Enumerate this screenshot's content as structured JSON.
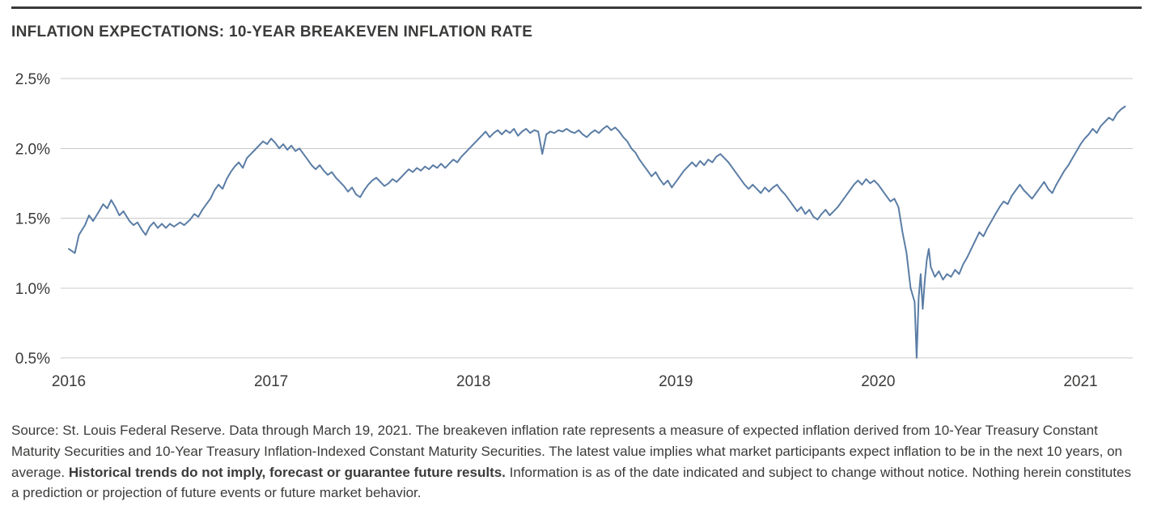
{
  "accent_colors": {
    "line": "#5b7da5",
    "grid": "#c9c9c9",
    "text": "#3b3b3a",
    "top_rule": "#3a3a39"
  },
  "chart_data": {
    "type": "line",
    "title": "INFLATION EXPECTATIONS: 10-YEAR BREAKEVEN INFLATION RATE",
    "xlabel": "",
    "ylabel": "",
    "grid": "horizontal",
    "legend": "none",
    "xlim": [
      2016.0,
      2021.25
    ],
    "ylim": [
      0.5,
      2.5
    ],
    "x_ticks": [
      2016,
      2017,
      2018,
      2019,
      2020,
      2021
    ],
    "y_tick_values": [
      2.5,
      2.0,
      1.5,
      1.0,
      0.5
    ],
    "y_tick_labels": [
      "2.5%",
      "2.0%",
      "1.5%",
      "1.0%",
      "0.5%"
    ],
    "series": [
      {
        "name": "10-Year Breakeven Inflation Rate",
        "color": "#5b7da5",
        "points": [
          [
            2016.0,
            1.28
          ],
          [
            2016.03,
            1.25
          ],
          [
            2016.05,
            1.38
          ],
          [
            2016.08,
            1.45
          ],
          [
            2016.1,
            1.52
          ],
          [
            2016.12,
            1.48
          ],
          [
            2016.15,
            1.55
          ],
          [
            2016.17,
            1.6
          ],
          [
            2016.19,
            1.57
          ],
          [
            2016.21,
            1.63
          ],
          [
            2016.23,
            1.58
          ],
          [
            2016.25,
            1.52
          ],
          [
            2016.27,
            1.55
          ],
          [
            2016.3,
            1.48
          ],
          [
            2016.32,
            1.45
          ],
          [
            2016.34,
            1.47
          ],
          [
            2016.36,
            1.42
          ],
          [
            2016.38,
            1.38
          ],
          [
            2016.4,
            1.44
          ],
          [
            2016.42,
            1.47
          ],
          [
            2016.44,
            1.43
          ],
          [
            2016.46,
            1.46
          ],
          [
            2016.48,
            1.43
          ],
          [
            2016.5,
            1.46
          ],
          [
            2016.52,
            1.44
          ],
          [
            2016.55,
            1.47
          ],
          [
            2016.57,
            1.45
          ],
          [
            2016.6,
            1.49
          ],
          [
            2016.62,
            1.53
          ],
          [
            2016.64,
            1.51
          ],
          [
            2016.66,
            1.56
          ],
          [
            2016.68,
            1.6
          ],
          [
            2016.7,
            1.64
          ],
          [
            2016.72,
            1.7
          ],
          [
            2016.74,
            1.74
          ],
          [
            2016.76,
            1.71
          ],
          [
            2016.78,
            1.78
          ],
          [
            2016.8,
            1.83
          ],
          [
            2016.82,
            1.87
          ],
          [
            2016.84,
            1.9
          ],
          [
            2016.86,
            1.86
          ],
          [
            2016.88,
            1.93
          ],
          [
            2016.9,
            1.96
          ],
          [
            2016.92,
            1.99
          ],
          [
            2016.94,
            2.02
          ],
          [
            2016.96,
            2.05
          ],
          [
            2016.98,
            2.03
          ],
          [
            2017.0,
            2.07
          ],
          [
            2017.02,
            2.04
          ],
          [
            2017.04,
            2.0
          ],
          [
            2017.06,
            2.03
          ],
          [
            2017.08,
            1.99
          ],
          [
            2017.1,
            2.02
          ],
          [
            2017.12,
            1.98
          ],
          [
            2017.14,
            2.0
          ],
          [
            2017.16,
            1.96
          ],
          [
            2017.18,
            1.92
          ],
          [
            2017.2,
            1.88
          ],
          [
            2017.22,
            1.85
          ],
          [
            2017.24,
            1.88
          ],
          [
            2017.26,
            1.84
          ],
          [
            2017.28,
            1.81
          ],
          [
            2017.3,
            1.83
          ],
          [
            2017.32,
            1.79
          ],
          [
            2017.34,
            1.76
          ],
          [
            2017.36,
            1.73
          ],
          [
            2017.38,
            1.69
          ],
          [
            2017.4,
            1.72
          ],
          [
            2017.42,
            1.67
          ],
          [
            2017.44,
            1.65
          ],
          [
            2017.46,
            1.7
          ],
          [
            2017.48,
            1.74
          ],
          [
            2017.5,
            1.77
          ],
          [
            2017.52,
            1.79
          ],
          [
            2017.54,
            1.76
          ],
          [
            2017.56,
            1.73
          ],
          [
            2017.58,
            1.75
          ],
          [
            2017.6,
            1.78
          ],
          [
            2017.62,
            1.76
          ],
          [
            2017.64,
            1.79
          ],
          [
            2017.66,
            1.82
          ],
          [
            2017.68,
            1.85
          ],
          [
            2017.7,
            1.83
          ],
          [
            2017.72,
            1.86
          ],
          [
            2017.74,
            1.84
          ],
          [
            2017.76,
            1.87
          ],
          [
            2017.78,
            1.85
          ],
          [
            2017.8,
            1.88
          ],
          [
            2017.82,
            1.86
          ],
          [
            2017.84,
            1.89
          ],
          [
            2017.86,
            1.86
          ],
          [
            2017.88,
            1.89
          ],
          [
            2017.9,
            1.92
          ],
          [
            2017.92,
            1.9
          ],
          [
            2017.94,
            1.94
          ],
          [
            2017.96,
            1.97
          ],
          [
            2017.98,
            2.0
          ],
          [
            2018.0,
            2.03
          ],
          [
            2018.02,
            2.06
          ],
          [
            2018.04,
            2.09
          ],
          [
            2018.06,
            2.12
          ],
          [
            2018.08,
            2.08
          ],
          [
            2018.1,
            2.11
          ],
          [
            2018.12,
            2.13
          ],
          [
            2018.14,
            2.1
          ],
          [
            2018.16,
            2.13
          ],
          [
            2018.18,
            2.11
          ],
          [
            2018.2,
            2.14
          ],
          [
            2018.22,
            2.09
          ],
          [
            2018.24,
            2.12
          ],
          [
            2018.26,
            2.14
          ],
          [
            2018.28,
            2.11
          ],
          [
            2018.3,
            2.13
          ],
          [
            2018.32,
            2.12
          ],
          [
            2018.34,
            1.96
          ],
          [
            2018.36,
            2.1
          ],
          [
            2018.38,
            2.12
          ],
          [
            2018.4,
            2.11
          ],
          [
            2018.42,
            2.13
          ],
          [
            2018.44,
            2.12
          ],
          [
            2018.46,
            2.14
          ],
          [
            2018.48,
            2.12
          ],
          [
            2018.5,
            2.11
          ],
          [
            2018.52,
            2.13
          ],
          [
            2018.54,
            2.1
          ],
          [
            2018.56,
            2.08
          ],
          [
            2018.58,
            2.11
          ],
          [
            2018.6,
            2.13
          ],
          [
            2018.62,
            2.11
          ],
          [
            2018.64,
            2.14
          ],
          [
            2018.66,
            2.16
          ],
          [
            2018.68,
            2.13
          ],
          [
            2018.7,
            2.15
          ],
          [
            2018.72,
            2.12
          ],
          [
            2018.74,
            2.08
          ],
          [
            2018.76,
            2.05
          ],
          [
            2018.78,
            2.0
          ],
          [
            2018.8,
            1.97
          ],
          [
            2018.82,
            1.92
          ],
          [
            2018.84,
            1.88
          ],
          [
            2018.86,
            1.84
          ],
          [
            2018.88,
            1.8
          ],
          [
            2018.9,
            1.83
          ],
          [
            2018.92,
            1.78
          ],
          [
            2018.94,
            1.74
          ],
          [
            2018.96,
            1.77
          ],
          [
            2018.98,
            1.72
          ],
          [
            2019.0,
            1.76
          ],
          [
            2019.02,
            1.8
          ],
          [
            2019.04,
            1.84
          ],
          [
            2019.06,
            1.87
          ],
          [
            2019.08,
            1.9
          ],
          [
            2019.1,
            1.87
          ],
          [
            2019.12,
            1.91
          ],
          [
            2019.14,
            1.88
          ],
          [
            2019.16,
            1.92
          ],
          [
            2019.18,
            1.9
          ],
          [
            2019.2,
            1.94
          ],
          [
            2019.22,
            1.96
          ],
          [
            2019.24,
            1.93
          ],
          [
            2019.26,
            1.9
          ],
          [
            2019.28,
            1.86
          ],
          [
            2019.3,
            1.82
          ],
          [
            2019.32,
            1.78
          ],
          [
            2019.34,
            1.74
          ],
          [
            2019.36,
            1.71
          ],
          [
            2019.38,
            1.74
          ],
          [
            2019.4,
            1.71
          ],
          [
            2019.42,
            1.68
          ],
          [
            2019.44,
            1.72
          ],
          [
            2019.46,
            1.69
          ],
          [
            2019.48,
            1.72
          ],
          [
            2019.5,
            1.74
          ],
          [
            2019.52,
            1.7
          ],
          [
            2019.54,
            1.67
          ],
          [
            2019.56,
            1.63
          ],
          [
            2019.58,
            1.59
          ],
          [
            2019.6,
            1.55
          ],
          [
            2019.62,
            1.58
          ],
          [
            2019.64,
            1.53
          ],
          [
            2019.66,
            1.56
          ],
          [
            2019.68,
            1.51
          ],
          [
            2019.7,
            1.49
          ],
          [
            2019.72,
            1.53
          ],
          [
            2019.74,
            1.56
          ],
          [
            2019.76,
            1.52
          ],
          [
            2019.78,
            1.55
          ],
          [
            2019.8,
            1.58
          ],
          [
            2019.82,
            1.62
          ],
          [
            2019.84,
            1.66
          ],
          [
            2019.86,
            1.7
          ],
          [
            2019.88,
            1.74
          ],
          [
            2019.9,
            1.77
          ],
          [
            2019.92,
            1.74
          ],
          [
            2019.94,
            1.78
          ],
          [
            2019.96,
            1.75
          ],
          [
            2019.98,
            1.77
          ],
          [
            2020.0,
            1.74
          ],
          [
            2020.02,
            1.7
          ],
          [
            2020.04,
            1.66
          ],
          [
            2020.06,
            1.62
          ],
          [
            2020.08,
            1.64
          ],
          [
            2020.1,
            1.58
          ],
          [
            2020.12,
            1.4
          ],
          [
            2020.14,
            1.25
          ],
          [
            2020.16,
            1.0
          ],
          [
            2020.18,
            0.9
          ],
          [
            2020.19,
            0.5
          ],
          [
            2020.2,
            0.93
          ],
          [
            2020.21,
            1.1
          ],
          [
            2020.22,
            0.85
          ],
          [
            2020.23,
            1.05
          ],
          [
            2020.24,
            1.2
          ],
          [
            2020.25,
            1.28
          ],
          [
            2020.26,
            1.15
          ],
          [
            2020.28,
            1.08
          ],
          [
            2020.3,
            1.12
          ],
          [
            2020.32,
            1.06
          ],
          [
            2020.34,
            1.1
          ],
          [
            2020.36,
            1.08
          ],
          [
            2020.38,
            1.13
          ],
          [
            2020.4,
            1.1
          ],
          [
            2020.42,
            1.17
          ],
          [
            2020.44,
            1.22
          ],
          [
            2020.46,
            1.28
          ],
          [
            2020.48,
            1.34
          ],
          [
            2020.5,
            1.4
          ],
          [
            2020.52,
            1.37
          ],
          [
            2020.54,
            1.43
          ],
          [
            2020.56,
            1.48
          ],
          [
            2020.58,
            1.53
          ],
          [
            2020.6,
            1.58
          ],
          [
            2020.62,
            1.62
          ],
          [
            2020.64,
            1.6
          ],
          [
            2020.66,
            1.66
          ],
          [
            2020.68,
            1.7
          ],
          [
            2020.7,
            1.74
          ],
          [
            2020.72,
            1.7
          ],
          [
            2020.74,
            1.67
          ],
          [
            2020.76,
            1.64
          ],
          [
            2020.78,
            1.68
          ],
          [
            2020.8,
            1.72
          ],
          [
            2020.82,
            1.76
          ],
          [
            2020.84,
            1.71
          ],
          [
            2020.86,
            1.68
          ],
          [
            2020.88,
            1.74
          ],
          [
            2020.9,
            1.79
          ],
          [
            2020.92,
            1.84
          ],
          [
            2020.94,
            1.88
          ],
          [
            2020.96,
            1.93
          ],
          [
            2020.98,
            1.98
          ],
          [
            2021.0,
            2.03
          ],
          [
            2021.02,
            2.07
          ],
          [
            2021.04,
            2.1
          ],
          [
            2021.06,
            2.14
          ],
          [
            2021.08,
            2.11
          ],
          [
            2021.1,
            2.16
          ],
          [
            2021.12,
            2.19
          ],
          [
            2021.14,
            2.22
          ],
          [
            2021.16,
            2.2
          ],
          [
            2021.18,
            2.25
          ],
          [
            2021.2,
            2.28
          ],
          [
            2021.22,
            2.3
          ]
        ]
      }
    ]
  },
  "footer": {
    "text_before_bold": "Source: St. Louis Federal Reserve. Data through March 19, 2021. The breakeven inflation rate represents a measure of expected inflation derived from 10-Year Treasury Constant Maturity Securities and 10-Year Treasury Inflation-Indexed Constant Maturity Securities. The latest value implies what market participants expect inflation to be in the next 10 years, on average. ",
    "bold_text": "Historical trends do not imply, forecast or guarantee future results.",
    "text_after_bold": " Information is as of the date indicated and subject to change without notice. Nothing herein constitutes a prediction or projection of future events or future market behavior."
  }
}
